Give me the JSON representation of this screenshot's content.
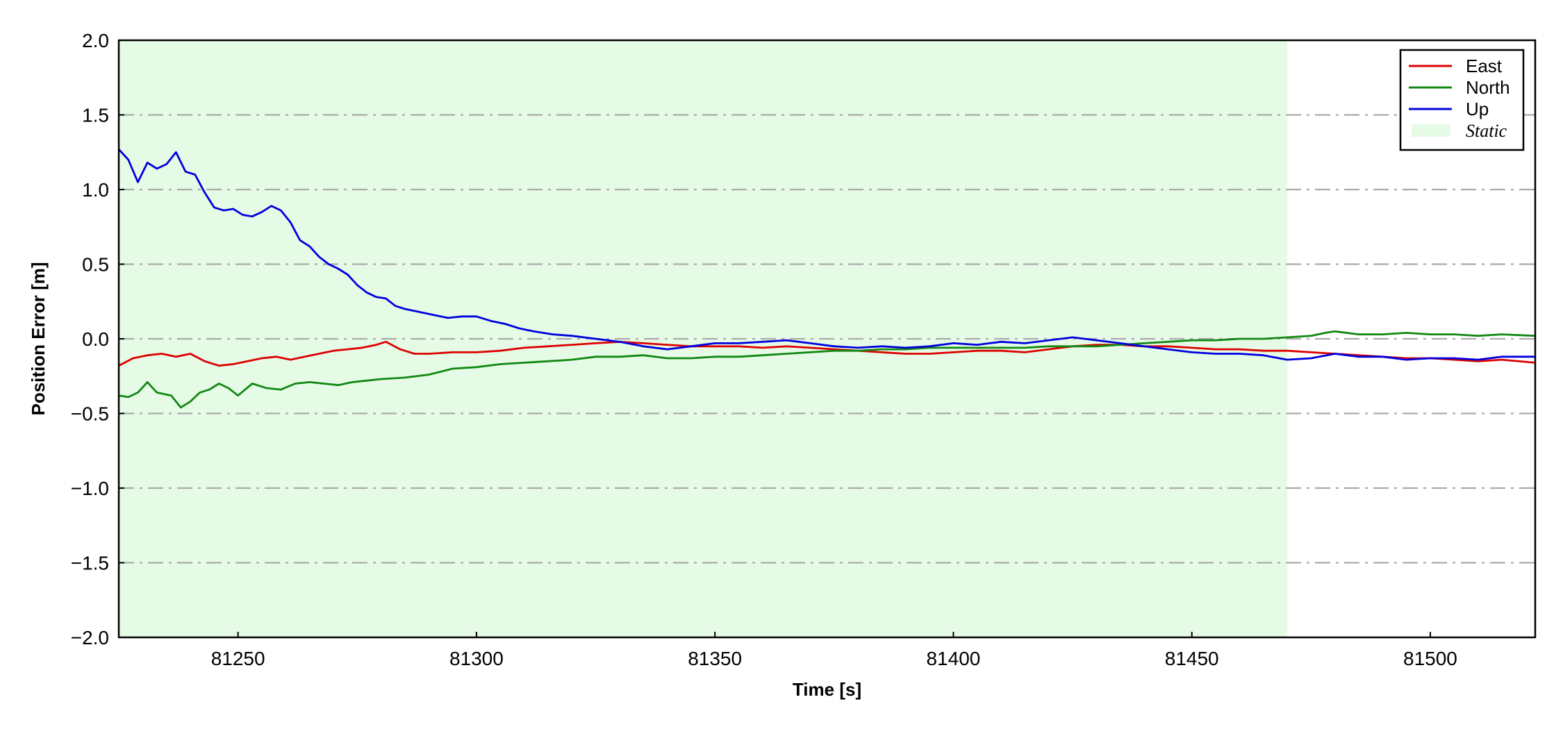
{
  "chart_data": {
    "type": "line",
    "xlabel": "Time [s]",
    "ylabel": "Position Error [m]",
    "xlim": [
      81225,
      81522
    ],
    "ylim": [
      -2.0,
      2.0
    ],
    "xticks": [
      81250,
      81300,
      81350,
      81400,
      81450,
      81500
    ],
    "xtick_labels": [
      "81250",
      "81300",
      "81350",
      "81400",
      "81450",
      "81500"
    ],
    "yticks": [
      -2.0,
      -1.5,
      -1.0,
      -0.5,
      0.0,
      0.5,
      1.0,
      1.5,
      2.0
    ],
    "ytick_labels": [
      "−2.0",
      "−1.5",
      "−1.0",
      "−0.5",
      "0.0",
      "0.5",
      "1.0",
      "1.5",
      "2.0"
    ],
    "grid": "horizontal dash-dot",
    "legend_position": "top-right",
    "shaded_region": {
      "name": "Static",
      "x_start": 81225,
      "x_end": 81470,
      "color": "#e6fbe6"
    },
    "series": [
      {
        "name": "East",
        "color": "#dd0000",
        "x": [
          81225,
          81228,
          81231,
          81234,
          81237,
          81240,
          81243,
          81246,
          81249,
          81252,
          81255,
          81258,
          81261,
          81264,
          81267,
          81270,
          81273,
          81276,
          81279,
          81281,
          81284,
          81287,
          81290,
          81295,
          81300,
          81305,
          81310,
          81315,
          81320,
          81325,
          81330,
          81335,
          81340,
          81345,
          81350,
          81355,
          81360,
          81365,
          81370,
          81375,
          81380,
          81385,
          81390,
          81395,
          81400,
          81405,
          81410,
          81415,
          81420,
          81425,
          81430,
          81435,
          81440,
          81445,
          81450,
          81455,
          81460,
          81465,
          81470,
          81475,
          81480,
          81485,
          81490,
          81495,
          81500,
          81505,
          81510,
          81515,
          81522
        ],
        "y": [
          -0.18,
          -0.13,
          -0.11,
          -0.1,
          -0.12,
          -0.1,
          -0.15,
          -0.18,
          -0.17,
          -0.15,
          -0.13,
          -0.12,
          -0.14,
          -0.12,
          -0.1,
          -0.08,
          -0.07,
          -0.06,
          -0.04,
          -0.02,
          -0.07,
          -0.1,
          -0.1,
          -0.09,
          -0.09,
          -0.08,
          -0.06,
          -0.05,
          -0.04,
          -0.03,
          -0.02,
          -0.03,
          -0.04,
          -0.05,
          -0.05,
          -0.05,
          -0.06,
          -0.05,
          -0.06,
          -0.07,
          -0.08,
          -0.09,
          -0.1,
          -0.1,
          -0.09,
          -0.08,
          -0.08,
          -0.09,
          -0.07,
          -0.05,
          -0.04,
          -0.04,
          -0.05,
          -0.05,
          -0.06,
          -0.07,
          -0.07,
          -0.08,
          -0.08,
          -0.09,
          -0.1,
          -0.11,
          -0.12,
          -0.13,
          -0.13,
          -0.14,
          -0.15,
          -0.14,
          -0.16
        ]
      },
      {
        "name": "North",
        "color": "#118811",
        "x": [
          81225,
          81227,
          81229,
          81231,
          81233,
          81236,
          81238,
          81240,
          81242,
          81244,
          81246,
          81248,
          81250,
          81253,
          81256,
          81259,
          81262,
          81265,
          81268,
          81271,
          81274,
          81277,
          81280,
          81285,
          81290,
          81295,
          81300,
          81305,
          81310,
          81315,
          81320,
          81325,
          81330,
          81335,
          81340,
          81345,
          81350,
          81355,
          81360,
          81365,
          81370,
          81375,
          81380,
          81385,
          81390,
          81395,
          81400,
          81405,
          81410,
          81415,
          81420,
          81425,
          81430,
          81435,
          81440,
          81445,
          81450,
          81455,
          81460,
          81465,
          81470,
          81475,
          81478,
          81480,
          81485,
          81490,
          81495,
          81500,
          81505,
          81510,
          81515,
          81522
        ],
        "y": [
          -0.38,
          -0.39,
          -0.36,
          -0.29,
          -0.36,
          -0.38,
          -0.46,
          -0.42,
          -0.36,
          -0.34,
          -0.3,
          -0.33,
          -0.38,
          -0.3,
          -0.33,
          -0.34,
          -0.3,
          -0.29,
          -0.3,
          -0.31,
          -0.29,
          -0.28,
          -0.27,
          -0.26,
          -0.24,
          -0.2,
          -0.19,
          -0.17,
          -0.16,
          -0.15,
          -0.14,
          -0.12,
          -0.12,
          -0.11,
          -0.13,
          -0.13,
          -0.12,
          -0.12,
          -0.11,
          -0.1,
          -0.09,
          -0.08,
          -0.08,
          -0.07,
          -0.07,
          -0.06,
          -0.06,
          -0.06,
          -0.06,
          -0.06,
          -0.05,
          -0.05,
          -0.05,
          -0.04,
          -0.03,
          -0.02,
          -0.01,
          -0.01,
          0.0,
          0.0,
          0.01,
          0.02,
          0.04,
          0.05,
          0.03,
          0.03,
          0.04,
          0.03,
          0.03,
          0.02,
          0.03,
          0.02
        ]
      },
      {
        "name": "Up",
        "color": "#0000dd",
        "x": [
          81225,
          81227,
          81229,
          81231,
          81233,
          81235,
          81237,
          81239,
          81241,
          81243,
          81245,
          81247,
          81249,
          81251,
          81253,
          81255,
          81257,
          81259,
          81261,
          81263,
          81265,
          81267,
          81269,
          81271,
          81273,
          81275,
          81277,
          81279,
          81281,
          81283,
          81285,
          81288,
          81291,
          81294,
          81297,
          81300,
          81303,
          81306,
          81309,
          81312,
          81316,
          81320,
          81325,
          81330,
          81335,
          81340,
          81345,
          81350,
          81355,
          81360,
          81365,
          81370,
          81375,
          81380,
          81385,
          81390,
          81395,
          81400,
          81405,
          81410,
          81415,
          81420,
          81425,
          81430,
          81435,
          81440,
          81445,
          81450,
          81455,
          81460,
          81465,
          81470,
          81475,
          81480,
          81485,
          81490,
          81495,
          81500,
          81505,
          81510,
          81515,
          81522
        ],
        "y": [
          1.27,
          1.2,
          1.05,
          1.18,
          1.14,
          1.17,
          1.25,
          1.12,
          1.1,
          0.98,
          0.88,
          0.86,
          0.87,
          0.83,
          0.82,
          0.85,
          0.89,
          0.86,
          0.78,
          0.66,
          0.62,
          0.55,
          0.5,
          0.47,
          0.43,
          0.36,
          0.31,
          0.28,
          0.27,
          0.22,
          0.2,
          0.18,
          0.16,
          0.14,
          0.15,
          0.15,
          0.12,
          0.1,
          0.07,
          0.05,
          0.03,
          0.02,
          0.0,
          -0.02,
          -0.05,
          -0.07,
          -0.05,
          -0.03,
          -0.03,
          -0.02,
          -0.01,
          -0.03,
          -0.05,
          -0.06,
          -0.05,
          -0.06,
          -0.05,
          -0.03,
          -0.04,
          -0.02,
          -0.03,
          -0.01,
          0.01,
          -0.01,
          -0.03,
          -0.05,
          -0.07,
          -0.09,
          -0.1,
          -0.1,
          -0.11,
          -0.14,
          -0.13,
          -0.1,
          -0.12,
          -0.12,
          -0.14,
          -0.13,
          -0.13,
          -0.14,
          -0.12,
          -0.12
        ]
      }
    ]
  }
}
